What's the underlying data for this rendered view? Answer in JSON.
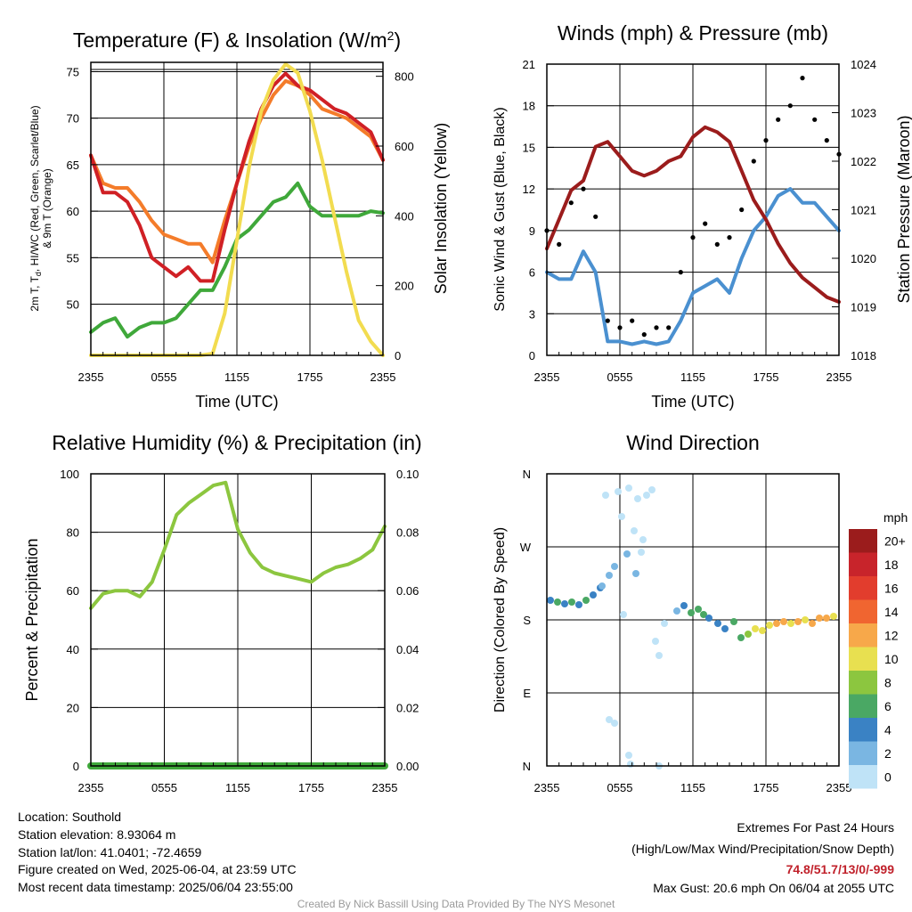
{
  "chart_data": [
    {
      "type": "line",
      "title": "Temperature (F) & Insolation (W/m²)",
      "xlabel": "Time (UTC)",
      "ylabel": "2m T, Td, HI/WC (Red, Green, Scarlet/Blue) & 9m T (Orange)",
      "ylabel_line1": "2m T, T",
      "ylabel_sub": "d",
      "ylabel_line1b": ", HI/WC (Red, Green, Scarlet/Blue)",
      "ylabel_line2": "& 9m T (Orange)",
      "y2label": "Solar Insolation (Yellow)",
      "x_ticks": [
        "2355",
        "0555",
        "1155",
        "1755",
        "2355"
      ],
      "ylim": [
        44.5,
        76
      ],
      "y_ticks": [
        50,
        55,
        60,
        65,
        70,
        75
      ],
      "y2lim": [
        0,
        840
      ],
      "y2_ticks": [
        0,
        200,
        400,
        600,
        800
      ],
      "x_hours": [
        0,
        1,
        2,
        3,
        4,
        5,
        6,
        7,
        8,
        9,
        10,
        11,
        12,
        13,
        14,
        15,
        16,
        17,
        18,
        19,
        20,
        21,
        22,
        23,
        24
      ],
      "series": [
        {
          "color": "#f47c2a",
          "axis": "left",
          "values": [
            66,
            63,
            62.5,
            62.5,
            61,
            59,
            57.5,
            57,
            56.5,
            56.5,
            54.5,
            59,
            63,
            67,
            70,
            72.5,
            74,
            73.5,
            72.5,
            71,
            70.5,
            70,
            69,
            68,
            65.5
          ]
        },
        {
          "color": "#d02025",
          "axis": "left",
          "values": [
            66,
            62,
            62,
            61,
            58.5,
            55,
            54,
            53,
            54,
            52.5,
            52.5,
            58,
            63,
            67.5,
            71,
            73.5,
            74.8,
            73.5,
            73,
            72,
            71,
            70.5,
            69.5,
            68.5,
            65.5
          ]
        },
        {
          "color": "#3fa83a",
          "axis": "left",
          "values": [
            47,
            48,
            48.5,
            46.5,
            47.5,
            48,
            48,
            48.5,
            50,
            51.5,
            51.5,
            54,
            57,
            58,
            59.5,
            61,
            61.5,
            63,
            60.5,
            59.5,
            59.5,
            59.5,
            59.5,
            60,
            59.8
          ]
        },
        {
          "color": "#f2dc50",
          "axis": "right",
          "values": [
            0,
            0,
            0,
            0,
            0,
            0,
            0,
            0,
            0,
            0,
            5,
            120,
            330,
            540,
            700,
            790,
            835,
            810,
            700,
            560,
            400,
            240,
            100,
            40,
            0
          ]
        }
      ]
    },
    {
      "type": "line",
      "title": "Winds (mph) & Pressure (mb)",
      "xlabel": "Time (UTC)",
      "ylabel": "Sonic Wind & Gust (Blue, Black)",
      "y2label": "Station Pressure (Maroon)",
      "x_ticks": [
        "2355",
        "0555",
        "1155",
        "1755",
        "2355"
      ],
      "ylim": [
        0,
        21
      ],
      "y_ticks": [
        0,
        3,
        6,
        9,
        12,
        15,
        18,
        21
      ],
      "y2lim": [
        1018,
        1024
      ],
      "y2_ticks": [
        1018,
        1019,
        1020,
        1021,
        1022,
        1023,
        1024
      ],
      "x_hours": [
        0,
        1,
        2,
        3,
        4,
        5,
        6,
        7,
        8,
        9,
        10,
        11,
        12,
        13,
        14,
        15,
        16,
        17,
        18,
        19,
        20,
        21,
        22,
        23,
        24
      ],
      "series": [
        {
          "color": "#4a90d0",
          "axis": "left",
          "values": [
            6,
            5.5,
            5.5,
            7.5,
            6,
            1,
            1,
            0.8,
            1,
            0.8,
            1,
            2.5,
            4.5,
            5,
            5.5,
            4.5,
            7,
            9,
            10,
            11.5,
            12,
            11,
            11,
            10,
            9
          ]
        },
        {
          "color": "#9b1c1c",
          "axis": "right",
          "values": [
            1020.2,
            1020.8,
            1021.4,
            1021.6,
            1022.3,
            1022.4,
            1022.1,
            1021.8,
            1021.7,
            1021.8,
            1022,
            1022.1,
            1022.5,
            1022.7,
            1022.6,
            1022.4,
            1021.8,
            1021.2,
            1020.8,
            1020.3,
            1019.9,
            1019.6,
            1019.4,
            1019.2,
            1019.1
          ]
        },
        {
          "color": "#000000",
          "axis": "left",
          "style": "dots",
          "values": [
            9,
            8,
            11,
            12,
            10,
            2.5,
            2,
            2.5,
            1.5,
            2,
            2,
            6,
            8.5,
            9.5,
            8,
            8.5,
            10.5,
            14,
            15.5,
            17,
            18,
            20,
            17,
            15.5,
            14.5
          ]
        }
      ]
    },
    {
      "type": "line",
      "title": "Relative Humidity (%) & Precipitation (in)",
      "ylabel": "Percent & Precipitation",
      "x_ticks": [
        "2355",
        "0555",
        "1155",
        "1755",
        "2355"
      ],
      "ylim": [
        0,
        100
      ],
      "y_ticks": [
        0,
        20,
        40,
        60,
        80,
        100
      ],
      "y2lim": [
        0,
        0.1
      ],
      "y2_ticks": [
        "0.00",
        "0.02",
        "0.04",
        "0.06",
        "0.08",
        "0.10"
      ],
      "x_hours": [
        0,
        1,
        2,
        3,
        4,
        5,
        6,
        7,
        8,
        9,
        10,
        11,
        12,
        13,
        14,
        15,
        16,
        17,
        18,
        19,
        20,
        21,
        22,
        23,
        24
      ],
      "series": [
        {
          "color": "#8cc63f",
          "axis": "left",
          "values": [
            54,
            59,
            60,
            60,
            58,
            63,
            74,
            86,
            90,
            93,
            96,
            97,
            81,
            73,
            68,
            66,
            65,
            64,
            63,
            66,
            68,
            69,
            71,
            74,
            82
          ]
        },
        {
          "color": "#3fa83a",
          "axis": "right",
          "values": [
            0,
            0,
            0,
            0,
            0,
            0,
            0,
            0,
            0,
            0,
            0,
            0,
            0,
            0,
            0,
            0,
            0,
            0,
            0,
            0,
            0,
            0,
            0,
            0,
            0
          ]
        }
      ]
    },
    {
      "type": "scatter",
      "title": "Wind Direction",
      "ylabel": "Direction (Colored By Speed)",
      "x_ticks": [
        "2355",
        "0555",
        "1155",
        "1755",
        "2355"
      ],
      "y_tick_labels": [
        "N",
        "E",
        "S",
        "W",
        "N"
      ],
      "y_tick_degrees": [
        0,
        90,
        180,
        270,
        360
      ],
      "legend_title": "mph",
      "legend_labels": [
        "20+",
        "18",
        "16",
        "14",
        "12",
        "10",
        "8",
        "6",
        "4",
        "2",
        "0"
      ],
      "legend_colors": [
        "#9b1c1c",
        "#c8242b",
        "#e23d2d",
        "#f06530",
        "#f7a84a",
        "#e8e050",
        "#8cc63f",
        "#4aa864",
        "#3a82c4",
        "#7ab6e2",
        "#bfe3f7"
      ]
    }
  ],
  "footer": {
    "location": "Location: Southold",
    "elevation": "Station elevation: 8.93064 m",
    "latlon": "Station lat/lon: 41.0401; -72.4659",
    "created": "Figure created on Wed, 2025-06-04, at 23:59 UTC",
    "recent": "Most recent data timestamp: 2025/06/04 23:55:00",
    "extremes_title": "Extremes For Past 24 Hours",
    "extremes_subtitle": "(High/Low/Max Wind/Precipitation/Snow Depth)",
    "extremes_values": "74.8/51.7/13/0/-999",
    "max_gust": "Max Gust: 20.6 mph On 06/04 at 2055 UTC",
    "credit": "Created By Nick Bassill Using Data Provided By The NYS Mesonet"
  }
}
